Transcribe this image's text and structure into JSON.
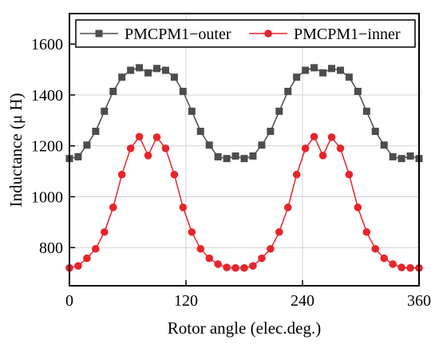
{
  "chart_data": {
    "type": "line",
    "xlabel": "Rotor angle (elec.deg.)",
    "ylabel": "Inductance (μ H)",
    "xlim": [
      0,
      360
    ],
    "ylim": [
      650,
      1720
    ],
    "xticks": [
      0,
      120,
      240,
      360
    ],
    "yticks": [
      800,
      1000,
      1200,
      1400,
      1600
    ],
    "grid": true,
    "legend_position": "top",
    "series": [
      {
        "name": "PMCPM1−outer",
        "color": "#4d4d4d",
        "marker": "square",
        "x": [
          0,
          9,
          18,
          27,
          36,
          45,
          54,
          63,
          72,
          81,
          90,
          99,
          108,
          117,
          126,
          135,
          144,
          153,
          162,
          171,
          180,
          189,
          198,
          207,
          216,
          225,
          234,
          243,
          252,
          261,
          270,
          279,
          288,
          297,
          306,
          315,
          324,
          333,
          342,
          351,
          360
        ],
        "values": [
          1150,
          1157,
          1203,
          1257,
          1336,
          1414,
          1470,
          1497,
          1507,
          1487,
          1504,
          1497,
          1470,
          1414,
          1336,
          1257,
          1203,
          1157,
          1150,
          1160,
          1150,
          1160,
          1203,
          1257,
          1336,
          1414,
          1470,
          1497,
          1507,
          1487,
          1504,
          1497,
          1470,
          1414,
          1336,
          1257,
          1203,
          1157,
          1150,
          1160,
          1150
        ]
      },
      {
        "name": "PMCPM1−inner",
        "color": "#e8242b",
        "marker": "circle",
        "x": [
          0,
          9,
          18,
          27,
          36,
          45,
          54,
          63,
          72,
          81,
          90,
          99,
          108,
          117,
          126,
          135,
          144,
          153,
          162,
          171,
          180,
          189,
          198,
          207,
          216,
          225,
          234,
          243,
          252,
          261,
          270,
          279,
          288,
          297,
          306,
          315,
          324,
          333,
          342,
          351,
          360
        ],
        "values": [
          720,
          728,
          758,
          795,
          861,
          958,
          1087,
          1190,
          1236,
          1162,
          1234,
          1190,
          1087,
          958,
          861,
          795,
          758,
          735,
          722,
          720,
          720,
          728,
          758,
          795,
          861,
          958,
          1087,
          1190,
          1236,
          1162,
          1234,
          1190,
          1087,
          958,
          861,
          795,
          758,
          735,
          722,
          720,
          720
        ]
      }
    ]
  }
}
